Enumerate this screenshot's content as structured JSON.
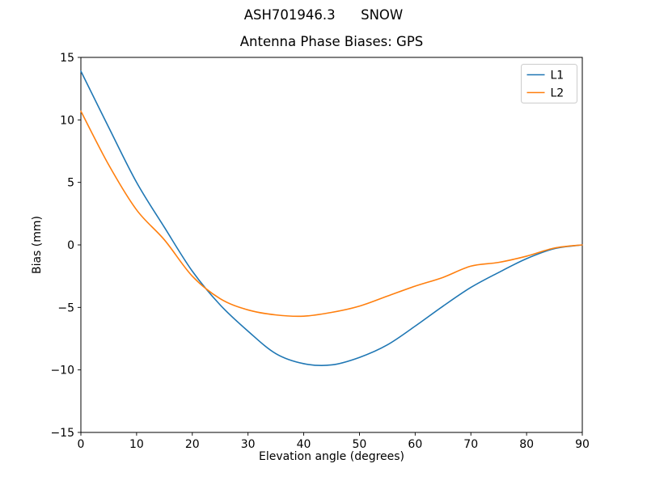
{
  "figure": {
    "suptitle": "ASH701946.3      SNOW",
    "title": "Antenna Phase Biases: GPS",
    "xlabel": "Elevation angle (degrees)",
    "ylabel": "Bias (mm)"
  },
  "legend": {
    "items": [
      {
        "label": "L1",
        "color": "#1f77b4"
      },
      {
        "label": "L2",
        "color": "#ff7f0e"
      }
    ]
  },
  "chart_data": {
    "type": "line",
    "suptitle": "ASH701946.3     SNOW",
    "title": "Antenna Phase Biases: GPS",
    "xlabel": "Elevation angle (degrees)",
    "ylabel": "Bias (mm)",
    "xlim": [
      0,
      90
    ],
    "ylim": [
      -15,
      15
    ],
    "xticks": [
      0,
      10,
      20,
      30,
      40,
      50,
      60,
      70,
      80,
      90
    ],
    "yticks": [
      -15,
      -10,
      -5,
      0,
      5,
      10,
      15
    ],
    "grid": false,
    "legend_position": "upper right",
    "x": [
      0,
      5,
      10,
      15,
      20,
      25,
      30,
      35,
      40,
      45,
      50,
      55,
      60,
      65,
      70,
      75,
      80,
      85,
      90
    ],
    "series": [
      {
        "name": "L1",
        "color": "#1f77b4",
        "values": [
          13.9,
          9.4,
          5.0,
          1.4,
          -2.1,
          -4.8,
          -6.9,
          -8.7,
          -9.5,
          -9.6,
          -9.0,
          -8.0,
          -6.5,
          -4.9,
          -3.4,
          -2.2,
          -1.1,
          -0.3,
          0.0
        ]
      },
      {
        "name": "L2",
        "color": "#ff7f0e",
        "values": [
          10.7,
          6.4,
          2.8,
          0.4,
          -2.5,
          -4.3,
          -5.2,
          -5.6,
          -5.7,
          -5.4,
          -4.9,
          -4.1,
          -3.3,
          -2.6,
          -1.7,
          -1.4,
          -0.9,
          -0.25,
          0.0
        ]
      }
    ]
  }
}
